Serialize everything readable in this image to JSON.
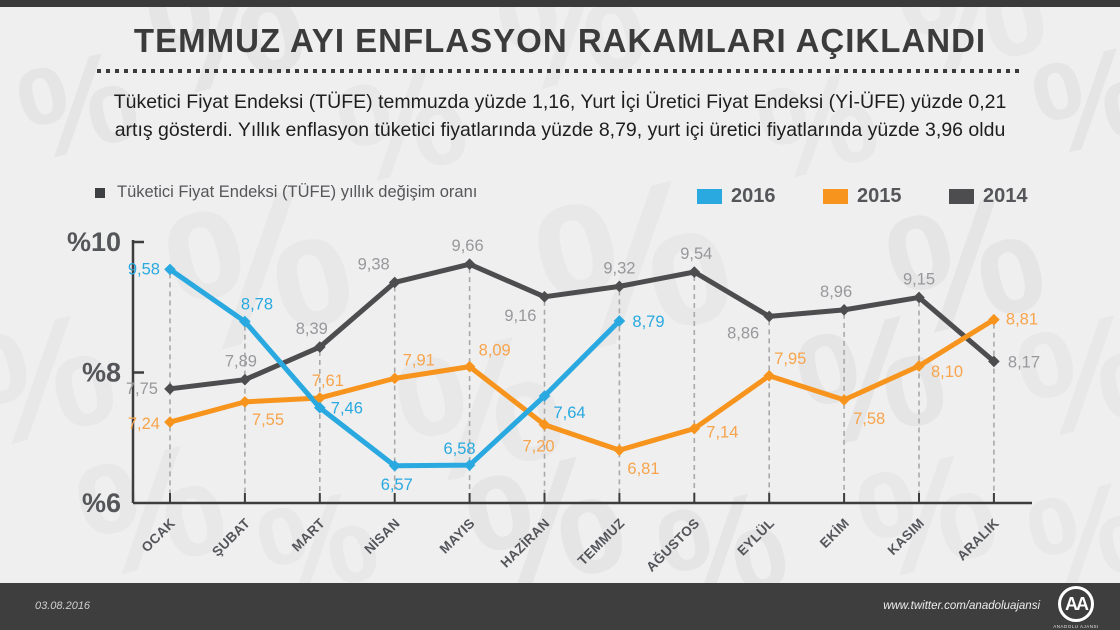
{
  "header": {
    "title": "TEMMUZ AYI ENFLASYON RAKAMLARI AÇIKLANDI",
    "subtitle_line1": "Tüketici Fiyat Endeksi (TÜFE) temmuzda yüzde 1,16, Yurt İçi Üretici Fiyat Endeksi (Yİ-ÜFE) yüzde 0,21",
    "subtitle_line2": "artış gösterdi. Yıllık enflasyon tüketici fiyatlarında yüzde 8,79, yurt içi üretici fiyatlarında yüzde 3,96 oldu"
  },
  "legend": {
    "series_label": "Tüketici Fiyat Endeksi (TÜFE) yıllık değişim oranı"
  },
  "chart_data": {
    "type": "line",
    "title": "Tüketici Fiyat Endeksi (TÜFE) yıllık değişim oranı",
    "categories": [
      "OCAK",
      "ŞUBAT",
      "MART",
      "NİSAN",
      "MAYIS",
      "HAZİRAN",
      "TEMMUZ",
      "AĞUSTOS",
      "EYLÜL",
      "EKİM",
      "KASIM",
      "ARALIK"
    ],
    "series": [
      {
        "name": "2016",
        "color": "#29A9E0",
        "label_color": "#29A9E0",
        "values": [
          9.58,
          8.78,
          7.46,
          6.57,
          6.58,
          7.64,
          8.79
        ]
      },
      {
        "name": "2015",
        "color": "#F7941E",
        "label_color": "#F7A44C",
        "values": [
          7.24,
          7.55,
          7.61,
          7.91,
          8.09,
          7.2,
          6.81,
          7.14,
          7.95,
          7.58,
          8.1,
          8.81
        ]
      },
      {
        "name": "2014",
        "color": "#4D4D4F",
        "label_color": "#98989C",
        "values": [
          7.75,
          7.89,
          8.39,
          9.38,
          9.66,
          9.16,
          9.32,
          9.54,
          8.86,
          8.96,
          9.15,
          8.17
        ]
      }
    ],
    "ylabel_prefix": "%",
    "yticks": [
      10,
      8,
      6
    ],
    "ylim": [
      6,
      10
    ],
    "grid": "vertical-dashed",
    "legend_position": "top-right",
    "value_decimal_separator": ","
  },
  "watermark_glyph": "%",
  "footer": {
    "date": "03.08.2016",
    "url": "www.twitter.com/anadoluajansi",
    "logo_text": "AA",
    "logo_caption": "ANADOLU AJANSI"
  }
}
